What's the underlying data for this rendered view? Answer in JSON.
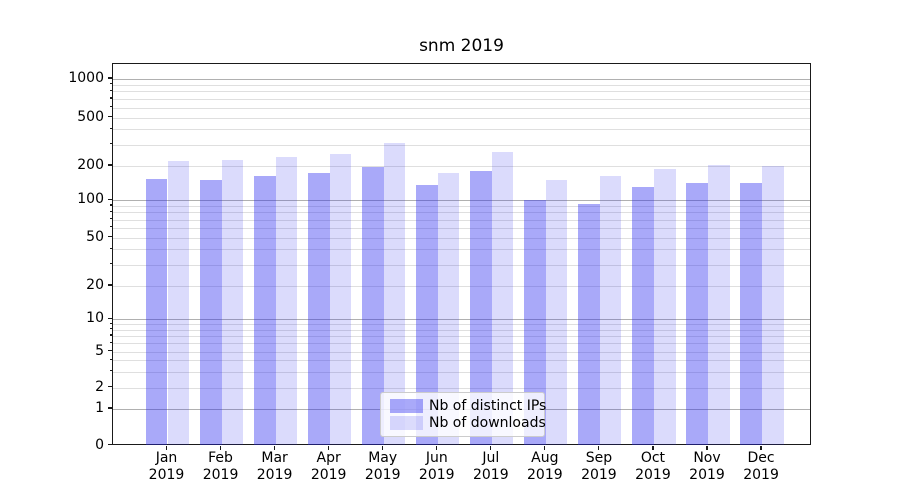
{
  "title": "snm 2019",
  "legend": {
    "items": [
      {
        "label": "Nb of distinct IPs",
        "color": "rgba(40,40,240,0.4)"
      },
      {
        "label": "Nb of downloads",
        "color": "rgba(40,40,240,0.17)"
      }
    ],
    "position": "lower center"
  },
  "chart_data": {
    "type": "bar",
    "title": "snm 2019",
    "categories": [
      "Jan",
      "Feb",
      "Mar",
      "Apr",
      "May",
      "Jun",
      "Jul",
      "Aug",
      "Sep",
      "Oct",
      "Nov",
      "Dec"
    ],
    "category_year": "2019",
    "series": [
      {
        "name": "Nb of distinct IPs",
        "color": "rgba(40,40,240,0.4)",
        "values": [
          154,
          150,
          162,
          172,
          196,
          136,
          179,
          101,
          94,
          131,
          142,
          143
        ]
      },
      {
        "name": "Nb of downloads",
        "color": "rgba(40,40,240,0.17)",
        "values": [
          219,
          226,
          235,
          252,
          311,
          175,
          260,
          151,
          164,
          190,
          205,
          199
        ]
      }
    ],
    "xlabel": "",
    "ylabel": "",
    "yscale": "symlog",
    "ylim": [
      0,
      1330
    ],
    "yticks": [
      0,
      1,
      2,
      5,
      10,
      20,
      50,
      100,
      200,
      500,
      1000
    ],
    "ytick_labels": [
      "0",
      "1",
      "2",
      "5",
      "10",
      "20",
      "50",
      "100",
      "200",
      "500",
      "1000"
    ],
    "grid": true,
    "grid_major": [
      1,
      10,
      100,
      1000
    ],
    "grid_minor": [
      2,
      3,
      4,
      5,
      6,
      7,
      8,
      9,
      20,
      30,
      40,
      50,
      60,
      70,
      80,
      90,
      200,
      300,
      400,
      500,
      600,
      700,
      800,
      900
    ]
  }
}
